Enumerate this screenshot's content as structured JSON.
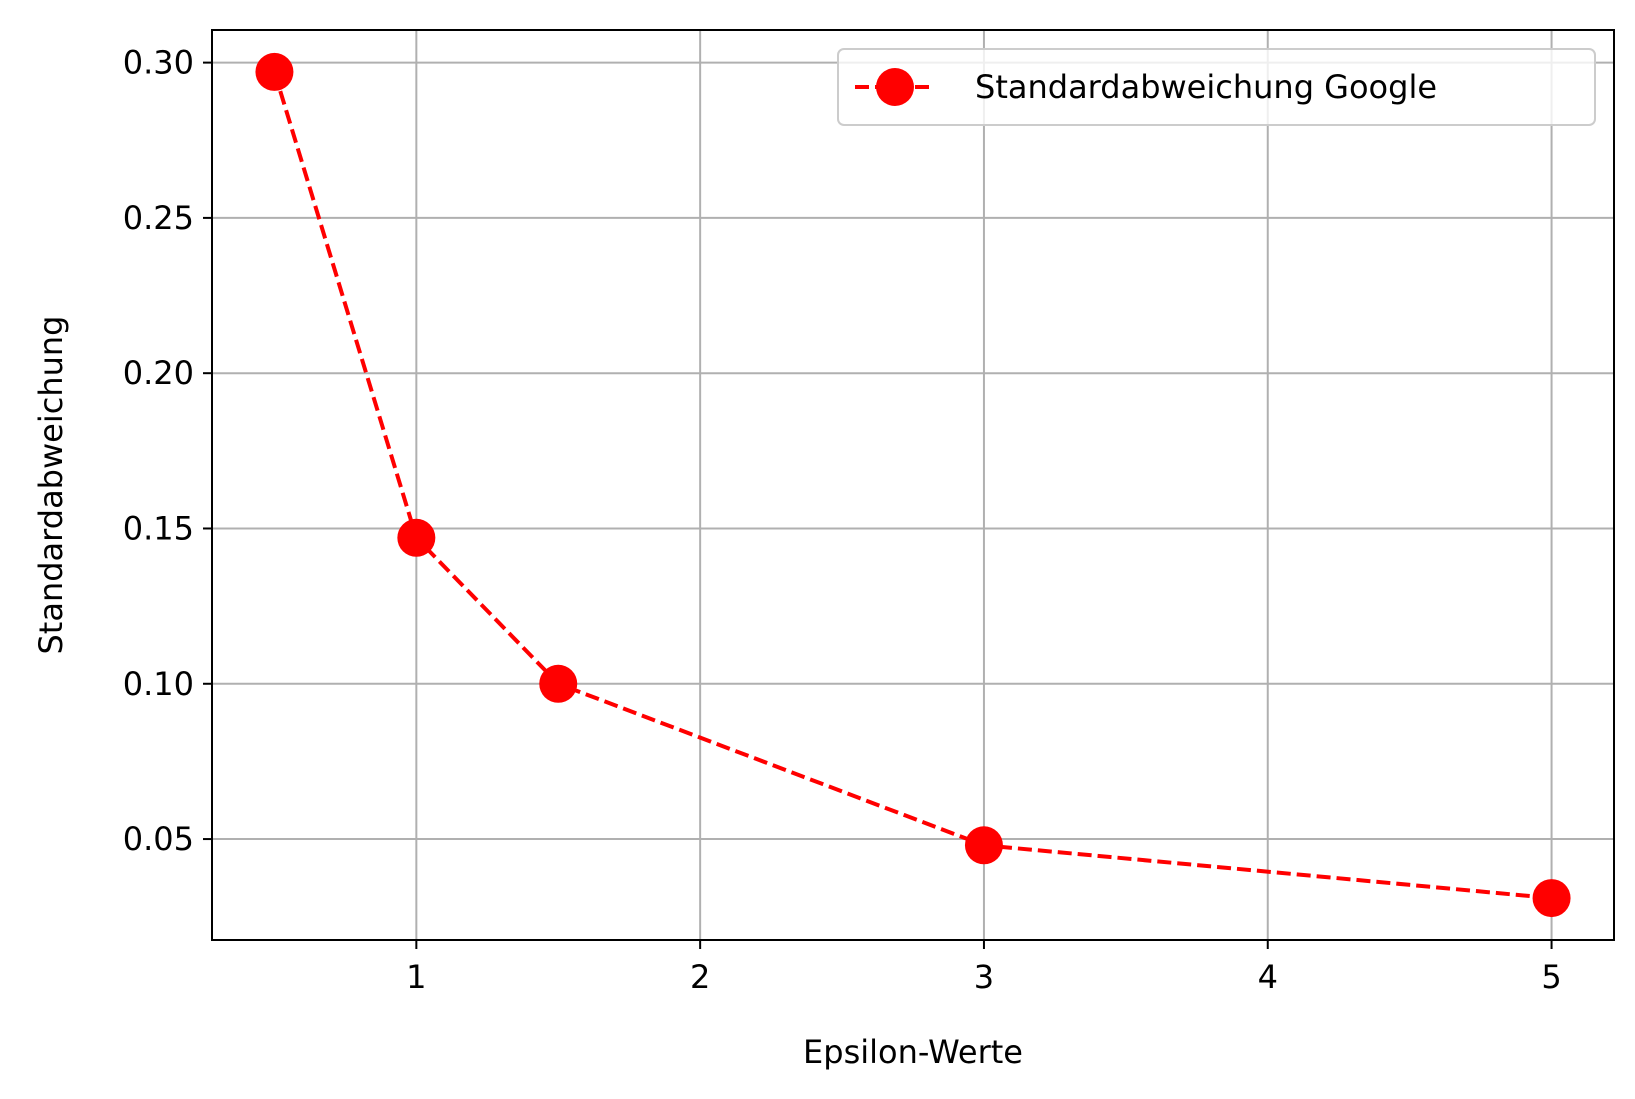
{
  "chart_data": {
    "type": "line",
    "title": "",
    "xlabel": "Epsilon-Werte",
    "ylabel": "Standardabweichung",
    "xlim": [
      0.28,
      5.22
    ],
    "ylim": [
      0.0175,
      0.3105
    ],
    "xticks": [
      1,
      2,
      3,
      4,
      5
    ],
    "xtick_labels": [
      "1",
      "2",
      "3",
      "4",
      "5"
    ],
    "yticks": [
      0.05,
      0.1,
      0.15,
      0.2,
      0.25,
      0.3
    ],
    "ytick_labels": [
      "0.05",
      "0.10",
      "0.15",
      "0.20",
      "0.25",
      "0.30"
    ],
    "grid": true,
    "legend_position": "top-right",
    "series": [
      {
        "name": "Standardabweichung Google",
        "color": "#ff0000",
        "line_style": "dashed",
        "marker": "circle",
        "x": [
          0.5,
          1,
          1.5,
          3,
          5
        ],
        "y": [
          0.297,
          0.147,
          0.1,
          0.048,
          0.031
        ]
      }
    ]
  }
}
